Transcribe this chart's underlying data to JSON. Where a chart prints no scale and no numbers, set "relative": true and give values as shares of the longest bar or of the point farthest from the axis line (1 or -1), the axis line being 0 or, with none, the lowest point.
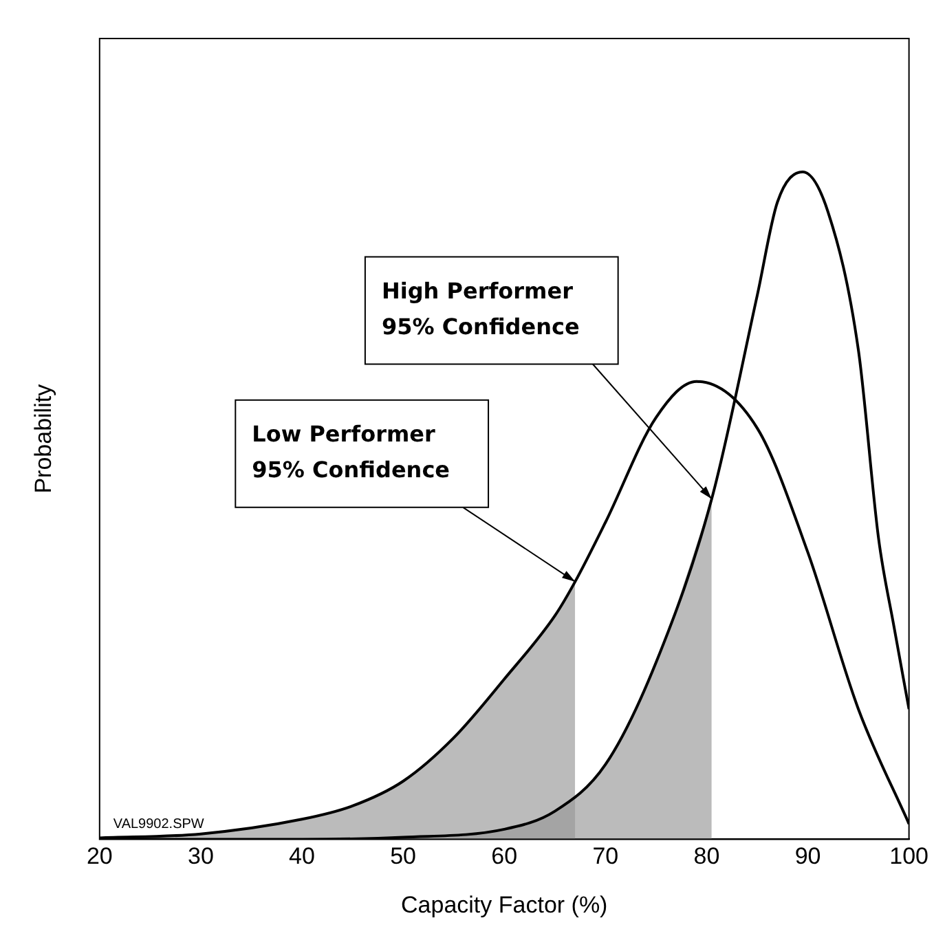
{
  "chart_data": {
    "type": "line",
    "xlabel": "Capacity Factor (%)",
    "ylabel": "Probability",
    "relative": true,
    "xlim": [
      20,
      100
    ],
    "xticks": [
      20,
      30,
      40,
      50,
      60,
      70,
      80,
      90,
      100
    ],
    "grid": false,
    "legend": false,
    "marker": "none",
    "line_style": "solid",
    "series": [
      {
        "type": "area",
        "color": "#999999",
        "x": [
          20,
          30,
          40,
          45,
          50,
          55,
          60,
          65,
          67
        ],
        "values": [
          0.002,
          0.008,
          0.03,
          0.05,
          0.087,
          0.152,
          0.24,
          0.335,
          0.386
        ]
      },
      {
        "type": "area",
        "color": "#999999",
        "x": [
          40,
          50,
          60,
          65,
          70,
          75,
          80.5
        ],
        "values": [
          0.0,
          0.003,
          0.015,
          0.042,
          0.112,
          0.265,
          0.51
        ]
      },
      {
        "type": "line",
        "color": "#000000",
        "x": [
          20,
          30,
          40,
          45,
          50,
          55,
          60,
          65,
          67,
          70,
          75,
          79,
          85,
          90,
          95,
          100
        ],
        "values": [
          0.002,
          0.008,
          0.03,
          0.05,
          0.087,
          0.152,
          0.24,
          0.335,
          0.386,
          0.475,
          0.632,
          0.686,
          0.616,
          0.43,
          0.195,
          0.023
        ]
      },
      {
        "type": "line",
        "color": "#000000",
        "x": [
          20,
          30,
          40,
          50,
          60,
          65,
          70,
          75,
          80.5,
          85,
          87,
          89.5,
          92,
          95,
          97,
          98.5,
          100
        ],
        "values": [
          0.0,
          0.0,
          0.0,
          0.003,
          0.015,
          0.042,
          0.112,
          0.265,
          0.51,
          0.815,
          0.955,
          1.0,
          0.94,
          0.733,
          0.45,
          0.32,
          0.195
        ]
      }
    ],
    "annotations": [
      {
        "text": "Low Performer\n95% Confidence",
        "x": 67,
        "y": 0.386
      },
      {
        "text": "High Performer\n95% Confidence",
        "x": 80.5,
        "y": 0.51
      },
      "VAL9902.SPW"
    ]
  }
}
